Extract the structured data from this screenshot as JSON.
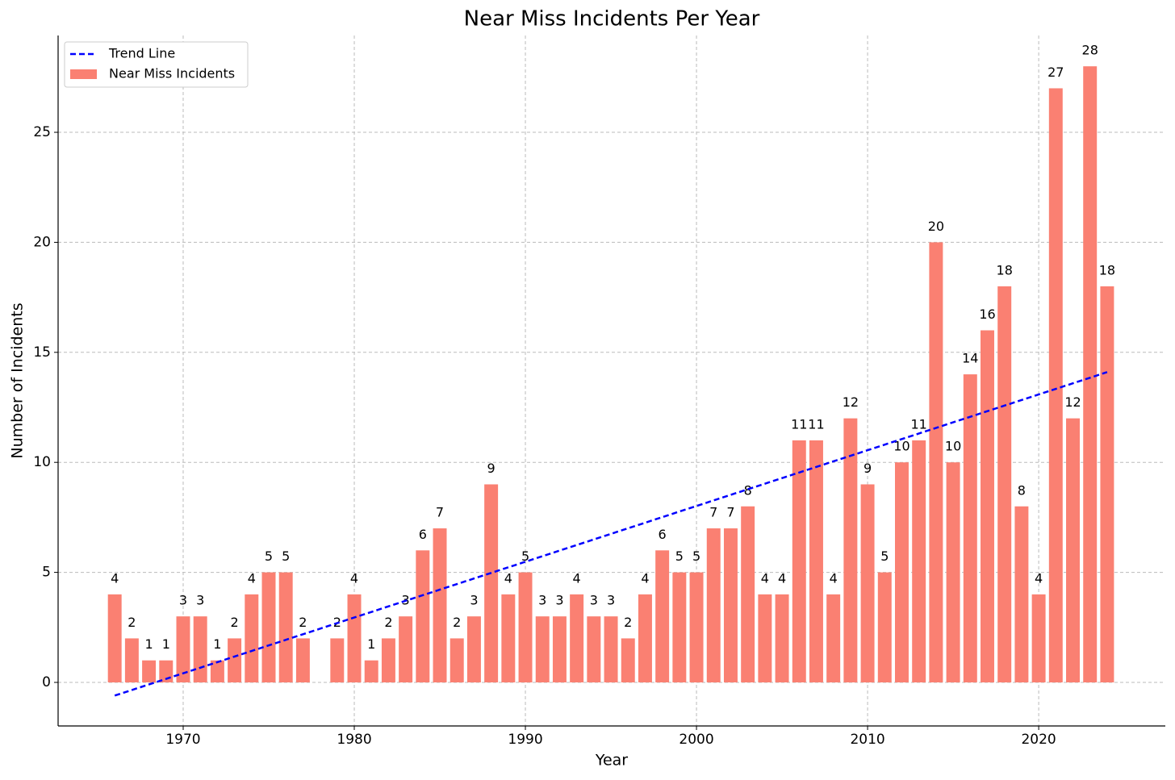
{
  "chart_data": {
    "type": "bar",
    "title": "Near Miss Incidents Per Year",
    "xlabel": "Year",
    "ylabel": "Number of Incidents",
    "xlim": [
      1962.69,
      2027.4
    ],
    "ylim": [
      -1.98,
      29.4
    ],
    "xticks": [
      1970,
      1980,
      1990,
      2000,
      2010,
      2020
    ],
    "yticks": [
      0,
      5,
      10,
      15,
      20,
      25
    ],
    "grid": true,
    "legend": "upper left",
    "series": [
      {
        "name": "Trend Line",
        "type": "line",
        "color": "#0000ff",
        "x": [
          1966,
          2024
        ],
        "values": [
          -0.6,
          14.1
        ]
      },
      {
        "name": "Near Miss Incidents",
        "type": "bar",
        "color": "#fa8072",
        "x": [
          1966,
          1967,
          1968,
          1969,
          1970,
          1971,
          1972,
          1973,
          1974,
          1975,
          1976,
          1977,
          1979,
          1980,
          1981,
          1982,
          1983,
          1984,
          1985,
          1986,
          1987,
          1988,
          1989,
          1990,
          1991,
          1992,
          1993,
          1994,
          1995,
          1996,
          1997,
          1998,
          1999,
          2000,
          2001,
          2002,
          2003,
          2004,
          2005,
          2006,
          2007,
          2008,
          2009,
          2010,
          2011,
          2012,
          2013,
          2014,
          2015,
          2016,
          2017,
          2018,
          2019,
          2020,
          2021,
          2022,
          2023,
          2024
        ],
        "values": [
          4,
          2,
          1,
          1,
          3,
          3,
          1,
          2,
          4,
          5,
          5,
          2,
          2,
          4,
          1,
          2,
          3,
          6,
          7,
          2,
          3,
          9,
          4,
          5,
          3,
          3,
          4,
          3,
          3,
          2,
          4,
          6,
          5,
          5,
          7,
          7,
          8,
          4,
          4,
          11,
          11,
          4,
          12,
          9,
          5,
          10,
          11,
          20,
          10,
          14,
          16,
          18,
          8,
          4,
          27,
          12,
          28,
          18
        ]
      }
    ]
  }
}
